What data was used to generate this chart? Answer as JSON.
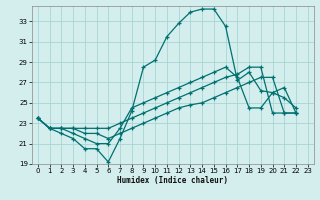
{
  "xlabel": "Humidex (Indice chaleur)",
  "background_color": "#d4eeee",
  "grid_color": "#a8d4d4",
  "line_color": "#007070",
  "xlim": [
    -0.5,
    23.5
  ],
  "ylim": [
    19,
    34.5
  ],
  "xticks": [
    0,
    1,
    2,
    3,
    4,
    5,
    6,
    7,
    8,
    9,
    10,
    11,
    12,
    13,
    14,
    15,
    16,
    17,
    18,
    19,
    20,
    21,
    22,
    23
  ],
  "yticks": [
    19,
    21,
    23,
    25,
    27,
    29,
    31,
    33
  ],
  "series": [
    [
      23.5,
      22.5,
      22.0,
      21.5,
      20.5,
      20.5,
      19.2,
      21.5,
      24.2,
      28.5,
      29.2,
      31.5,
      32.8,
      33.9,
      34.2,
      34.2,
      32.5,
      27.2,
      28.0,
      26.2,
      26.0,
      25.5,
      24.5
    ],
    [
      23.5,
      22.5,
      22.5,
      22.0,
      21.5,
      21.0,
      21.0,
      22.5,
      24.5,
      25.0,
      25.5,
      26.0,
      26.5,
      27.0,
      27.5,
      28.0,
      28.5,
      27.5,
      24.5,
      24.5,
      26.0,
      26.5,
      24.0
    ],
    [
      23.5,
      22.5,
      22.5,
      22.5,
      22.5,
      22.5,
      22.5,
      23.0,
      23.5,
      24.0,
      24.5,
      25.0,
      25.5,
      26.0,
      26.5,
      27.0,
      27.5,
      27.8,
      28.5,
      28.5,
      24.0,
      24.0,
      24.0
    ],
    [
      23.5,
      22.5,
      22.5,
      22.5,
      22.0,
      22.0,
      21.5,
      22.0,
      22.5,
      23.0,
      23.5,
      24.0,
      24.5,
      24.8,
      25.0,
      25.5,
      26.0,
      26.5,
      27.0,
      27.5,
      27.5,
      24.0,
      24.0
    ]
  ]
}
